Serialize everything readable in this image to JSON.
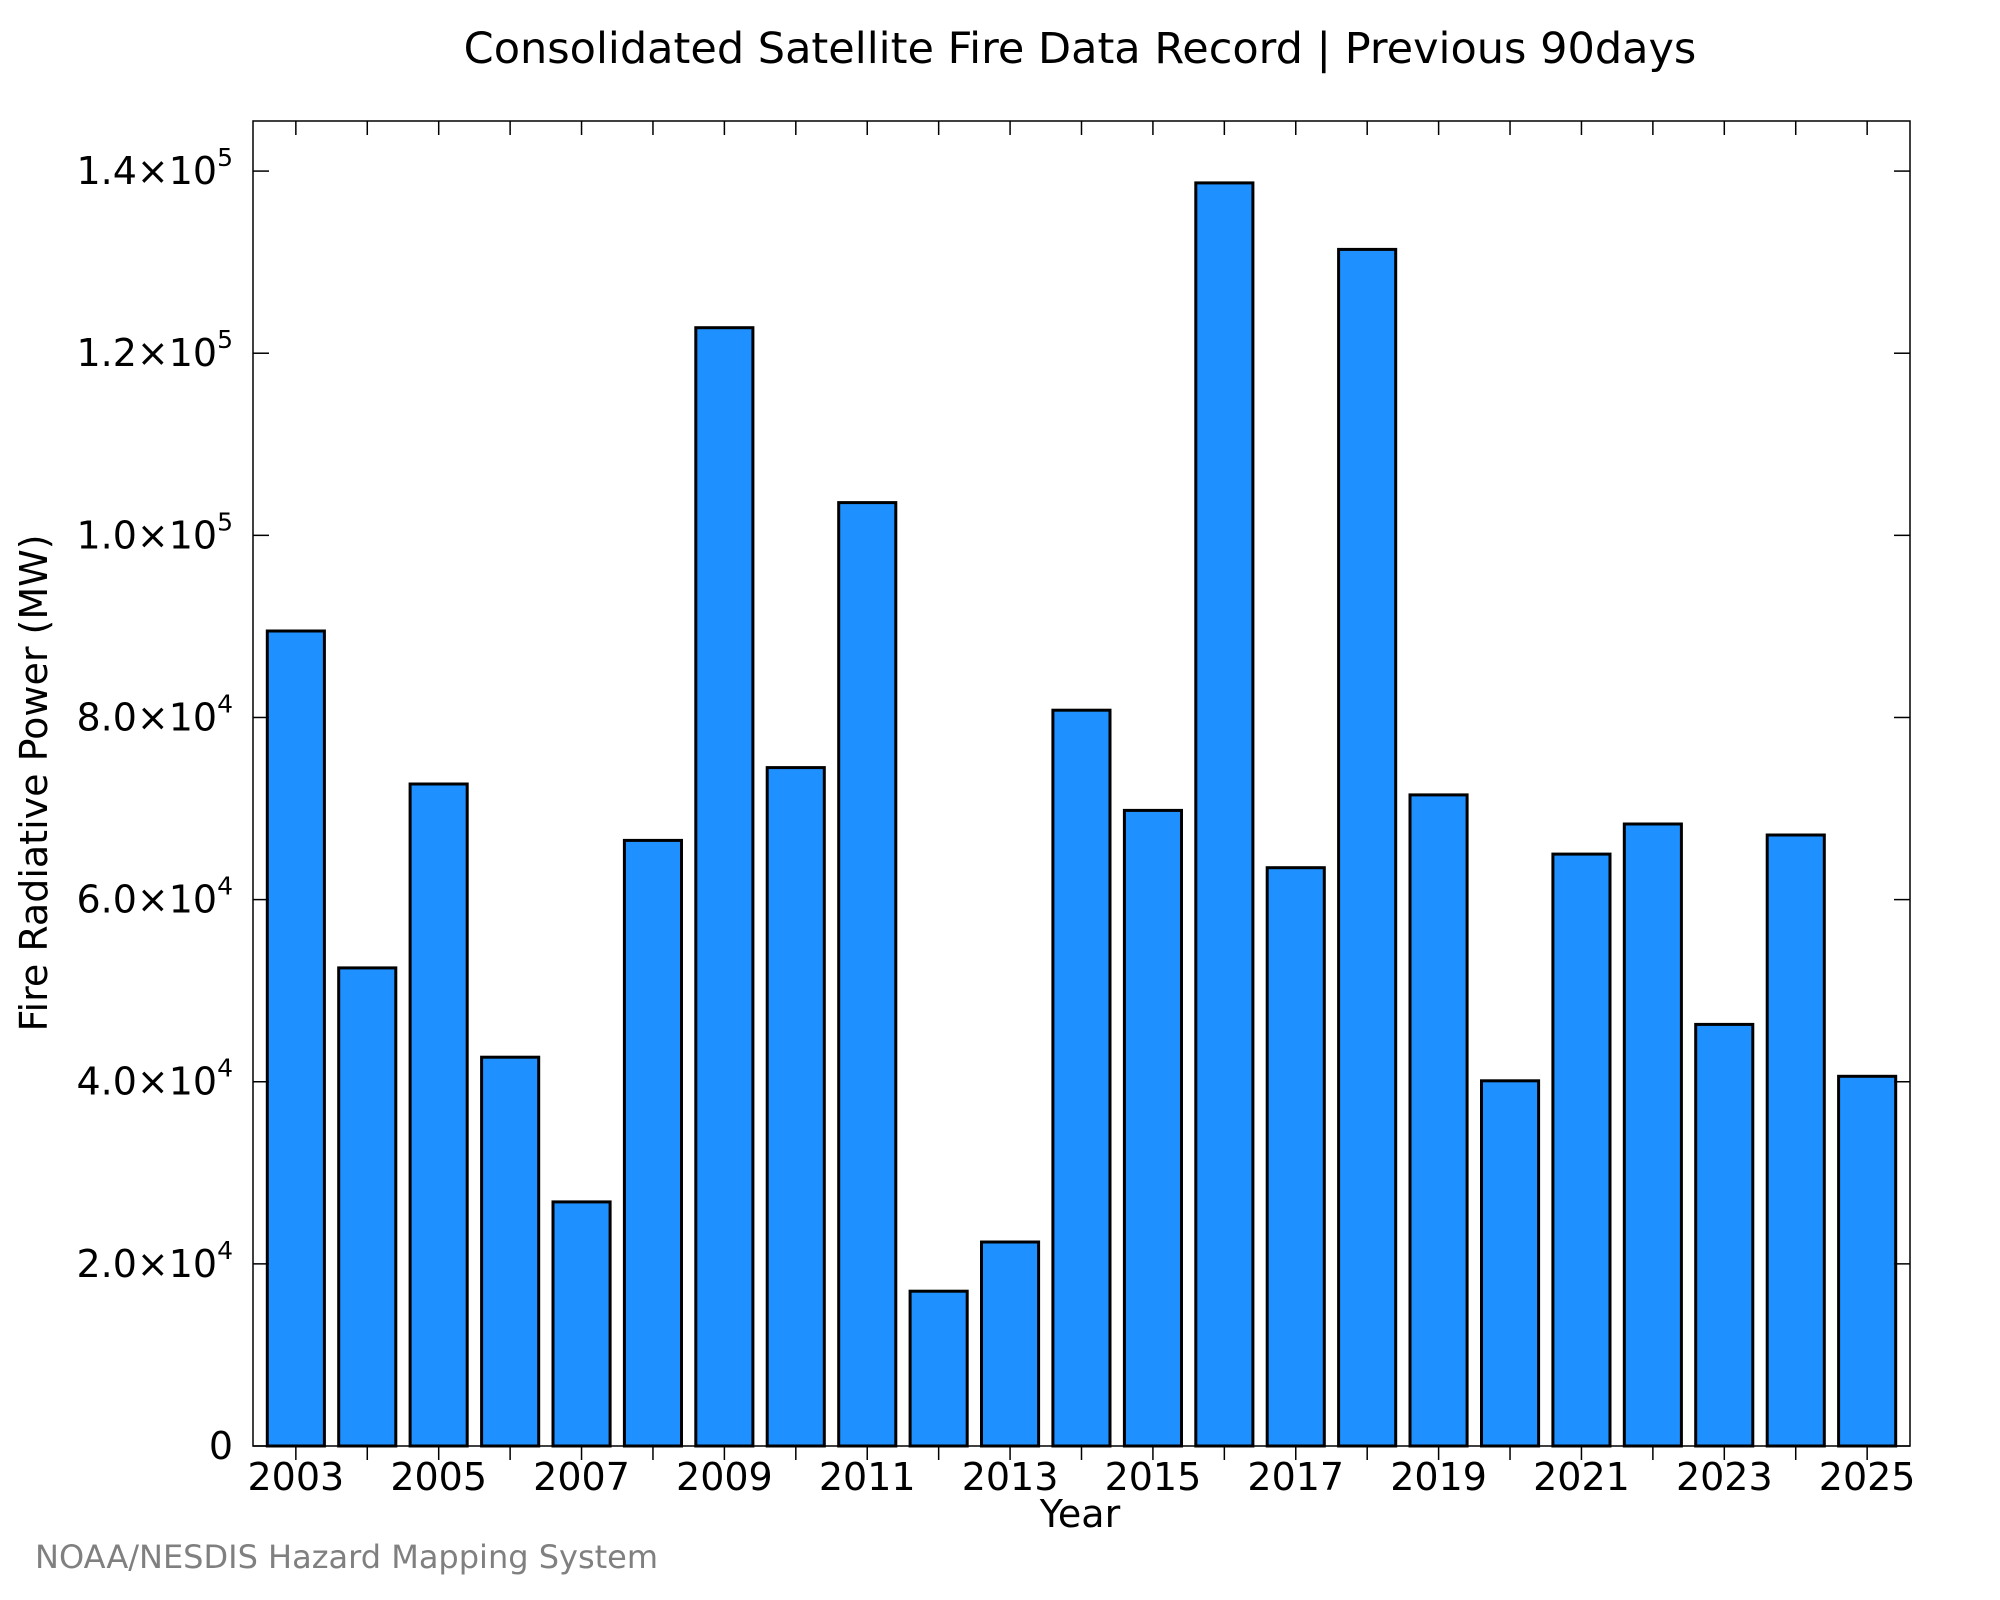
{
  "chart_data": {
    "type": "bar",
    "title": "Consolidated Satellite Fire Data Record | Previous 90days",
    "xlabel": "Year",
    "ylabel": "Fire Radiative Power (MW)",
    "ylim": [
      0,
      145500
    ],
    "grid": false,
    "legend": "none",
    "bar_color": "#1e90ff",
    "categories": [
      "2003",
      "2004",
      "2005",
      "2006",
      "2007",
      "2008",
      "2009",
      "2010",
      "2011",
      "2012",
      "2013",
      "2014",
      "2015",
      "2016",
      "2017",
      "2018",
      "2019",
      "2020",
      "2021",
      "2022",
      "2023",
      "2024",
      "2025"
    ],
    "values": [
      89500,
      52500,
      72700,
      42700,
      26800,
      66500,
      122800,
      74500,
      103600,
      17000,
      22400,
      80800,
      69800,
      138700,
      63500,
      131400,
      71500,
      40100,
      65000,
      68300,
      46300,
      67100,
      40600
    ],
    "x_ticks": [
      "2003",
      "2005",
      "2007",
      "2009",
      "2011",
      "2013",
      "2015",
      "2017",
      "2019",
      "2021",
      "2023",
      "2025"
    ],
    "y_ticks": [
      {
        "value": 0,
        "mantissa": "0",
        "exp": ""
      },
      {
        "value": 20000,
        "mantissa": "2.0×10",
        "exp": "4"
      },
      {
        "value": 40000,
        "mantissa": "4.0×10",
        "exp": "4"
      },
      {
        "value": 60000,
        "mantissa": "6.0×10",
        "exp": "4"
      },
      {
        "value": 80000,
        "mantissa": "8.0×10",
        "exp": "4"
      },
      {
        "value": 100000,
        "mantissa": "1.0×10",
        "exp": "5"
      },
      {
        "value": 120000,
        "mantissa": "1.2×10",
        "exp": "5"
      },
      {
        "value": 140000,
        "mantissa": "1.4×10",
        "exp": "5"
      }
    ]
  },
  "credit": "NOAA/NESDIS Hazard Mapping System"
}
